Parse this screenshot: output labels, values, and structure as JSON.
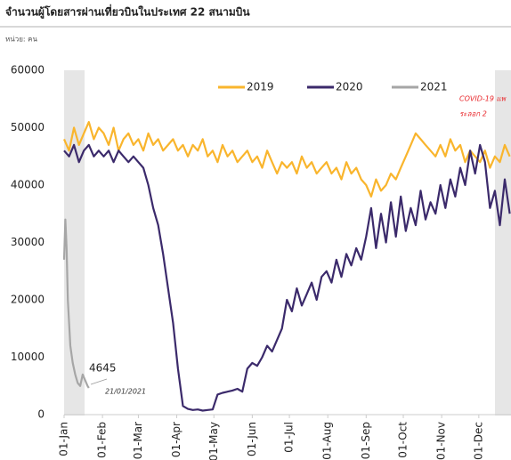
{
  "chart_data": {
    "type": "line",
    "title": "จำนวนผู้โดยสารผ่านเที่ยวบินในประเทศ 22 สนามบิน",
    "subtitle": "หน่วย: คน",
    "annotations": [
      "COVID-19 แพ",
      "ระลอก 2",
      "21/01/2021"
    ],
    "x": [
      0,
      4,
      8,
      12,
      16,
      20,
      24,
      28,
      32,
      36,
      40,
      44,
      48,
      52,
      56,
      60,
      64,
      68,
      72,
      76,
      80,
      84,
      88,
      92,
      96,
      100,
      104,
      108,
      112,
      116,
      120,
      124,
      128,
      132,
      136,
      140,
      144,
      148,
      152,
      156,
      160,
      164,
      168,
      172,
      176,
      180,
      184,
      188,
      192,
      196,
      200,
      204,
      208,
      212,
      216,
      220,
      224,
      228,
      232,
      236,
      240,
      244,
      248,
      252,
      256,
      260,
      264,
      268,
      272,
      276,
      280,
      284,
      288,
      292,
      296,
      300,
      304,
      308,
      312,
      316,
      320,
      324,
      328,
      332,
      336,
      340,
      344,
      348,
      352,
      356,
      360
    ],
    "xlim": [
      0,
      361
    ],
    "xticks": [
      {
        "value": 0,
        "label": "01-Jan"
      },
      {
        "value": 31,
        "label": "01-Feb"
      },
      {
        "value": 60,
        "label": "01-Mar"
      },
      {
        "value": 91,
        "label": "01-Apr"
      },
      {
        "value": 121,
        "label": "01-May"
      },
      {
        "value": 152,
        "label": "01-Jun"
      },
      {
        "value": 182,
        "label": "01-Jul"
      },
      {
        "value": 213,
        "label": "01-Aug"
      },
      {
        "value": 244,
        "label": "01-Sep"
      },
      {
        "value": 274,
        "label": "01-Oct"
      },
      {
        "value": 305,
        "label": "01-Nov"
      },
      {
        "value": 335,
        "label": "01-Dec"
      }
    ],
    "ylim": [
      0,
      60000
    ],
    "yticks": [
      0,
      10000,
      20000,
      30000,
      40000,
      50000,
      60000
    ],
    "grid": false,
    "series": [
      {
        "name": "2019",
        "color": "#f9b52d",
        "values": [
          48000,
          46000,
          50000,
          47000,
          49000,
          51000,
          48000,
          50000,
          49000,
          47000,
          50000,
          46000,
          48000,
          49000,
          47000,
          48000,
          46000,
          49000,
          47000,
          48000,
          46000,
          47000,
          48000,
          46000,
          47000,
          45000,
          47000,
          46000,
          48000,
          45000,
          46000,
          44000,
          47000,
          45000,
          46000,
          44000,
          45000,
          46000,
          44000,
          45000,
          43000,
          46000,
          44000,
          42000,
          44000,
          43000,
          44000,
          42000,
          45000,
          43000,
          44000,
          42000,
          43000,
          44000,
          42000,
          43000,
          41000,
          44000,
          42000,
          43000,
          41000,
          40000,
          38000,
          41000,
          39000,
          40000,
          42000,
          41000,
          43000,
          45000,
          47000,
          49000,
          48000,
          47000,
          46000,
          45000,
          47000,
          45000,
          48000,
          46000,
          47000,
          44000,
          46000,
          45000,
          44000,
          46000,
          43000,
          45000,
          44000,
          47000,
          45000
        ]
      },
      {
        "name": "2020",
        "color": "#3b2a6b",
        "values": [
          46000,
          45000,
          47000,
          44000,
          46000,
          47000,
          45000,
          46000,
          45000,
          46000,
          44000,
          46000,
          45000,
          44000,
          45000,
          44000,
          43000,
          40000,
          36000,
          33000,
          28000,
          22000,
          16000,
          8000,
          1500,
          1000,
          800,
          900,
          700,
          800,
          900,
          3500,
          3800,
          4000,
          4200,
          4500,
          4000,
          8000,
          9000,
          8500,
          10000,
          12000,
          11000,
          13000,
          15000,
          20000,
          18000,
          22000,
          19000,
          21000,
          23000,
          20000,
          24000,
          25000,
          23000,
          27000,
          24000,
          28000,
          26000,
          29000,
          27000,
          31000,
          36000,
          29000,
          35000,
          30000,
          37000,
          31000,
          38000,
          32000,
          36000,
          33000,
          39000,
          34000,
          37000,
          35000,
          40000,
          36000,
          41000,
          38000,
          43000,
          40000,
          46000,
          42000,
          47000,
          44000,
          36000,
          39000,
          33000,
          41000,
          35000
        ]
      },
      {
        "name": "2021",
        "color": "#a6a6a6",
        "x": [
          0,
          1,
          2,
          3,
          5,
          7,
          9,
          11,
          13,
          15,
          17,
          19,
          20
        ],
        "values": [
          27000,
          34000,
          29000,
          20000,
          12000,
          9000,
          7000,
          5500,
          5000,
          7000,
          6000,
          5000,
          4645
        ]
      }
    ]
  }
}
